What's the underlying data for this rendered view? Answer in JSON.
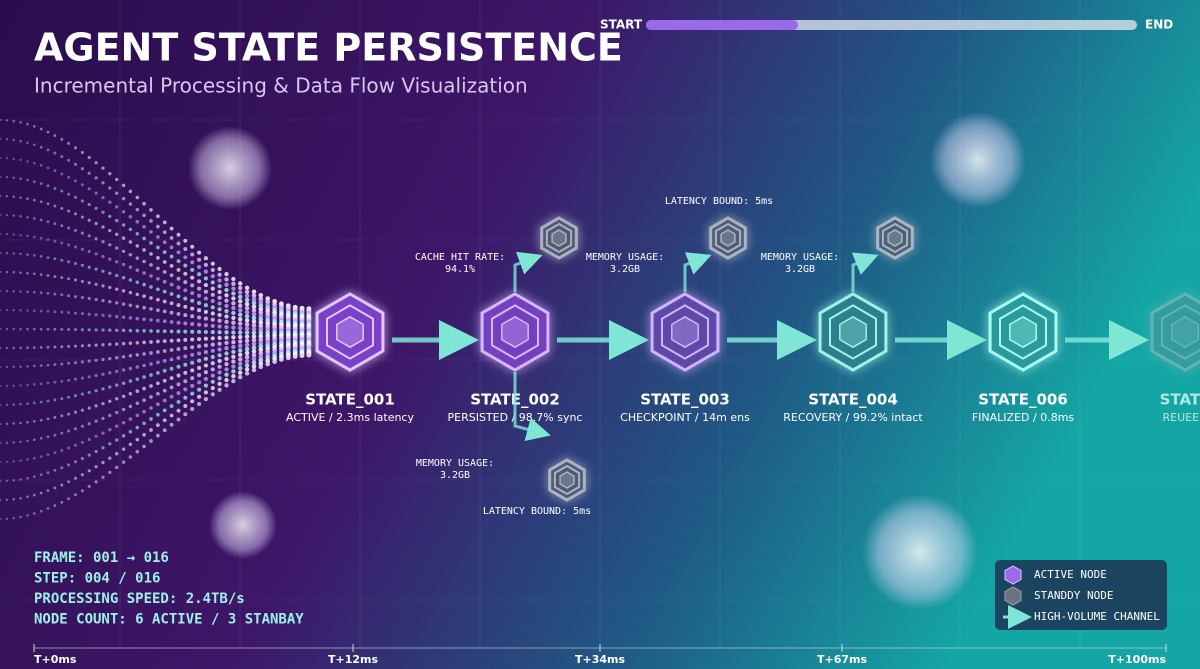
{
  "header": {
    "title": "AGENT STATE PERSISTENCE",
    "subtitle": "Incremental Processing & Data Flow Visualization"
  },
  "progress": {
    "start": "START",
    "end": "END"
  },
  "nodes": [
    {
      "label": "STATE_001",
      "status": "ACTIVE / 2.3ms latency"
    },
    {
      "label": "STATE_002",
      "status": "PERSISTED / 98.7% sync"
    },
    {
      "label": "STATE_003",
      "status": "CHECKPOINT / 14m ens"
    },
    {
      "label": "STATE_004",
      "status": "RECOVERY / 99.2% intact"
    },
    {
      "label": "STATE_006",
      "status": "FINALIZED / 0.8ms"
    },
    {
      "label": "STATE",
      "status": "REUEED"
    }
  ],
  "annotations": [
    {
      "lines": [
        "CACHE HIT RATE:",
        "94.1%"
      ]
    },
    {
      "lines": [
        "MEMORY USAGE:",
        "3.2GB"
      ]
    },
    {
      "lines": [
        "LATENCY BOUND: 5ms"
      ]
    },
    {
      "lines": [
        "LATENCY BOUND: 5ms"
      ]
    },
    {
      "lines": [
        "MEMORY USAGE:",
        "3.2GB"
      ]
    },
    {
      "lines": [
        "MEMORY USAGE:",
        "3.2GB"
      ]
    }
  ],
  "stats": [
    "FRAME: 001 → 016",
    "STEP: 004 / 016",
    "PROCESSING SPEED: 2.4TB/s",
    "NODE COUNT: 6 ACTIVE / 3 STANBAY"
  ],
  "legend": [
    "ACTIVE NODE",
    "STANDDY NODE",
    "HIGH-VOLUME CHANNEL"
  ],
  "timeline": [
    "T+0ms",
    "T+12ms",
    "T+34ms",
    "T+67ms",
    "T+100ms"
  ]
}
